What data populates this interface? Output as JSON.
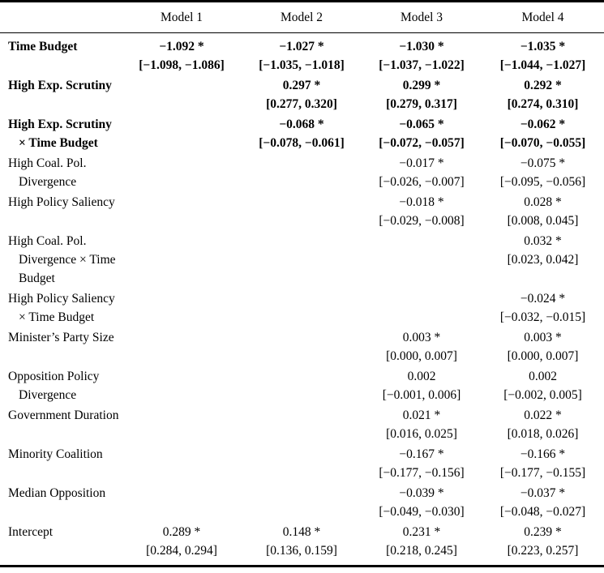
{
  "page": {
    "background": "#ffffff",
    "text_color": "#000000",
    "rule_color": "#000000"
  },
  "table": {
    "header": {
      "row_label_column": "",
      "columns": [
        "Model 1",
        "Model 2",
        "Model 3",
        "Model 4"
      ]
    },
    "groups": [
      {
        "bold": true,
        "lines": [
          {
            "label": "Time Budget",
            "indent": false,
            "cells": [
              "−1.092 *",
              "−1.027 *",
              "−1.030 *",
              "−1.035 *"
            ]
          },
          {
            "label": "",
            "indent": false,
            "cells": [
              "[−1.098, −1.086]",
              "[−1.035, −1.018]",
              "[−1.037, −1.022]",
              "[−1.044, −1.027]"
            ]
          }
        ]
      },
      {
        "bold": true,
        "lines": [
          {
            "label": "High Exp. Scrutiny",
            "indent": false,
            "cells": [
              "",
              "0.297 *",
              "0.299 *",
              "0.292 *"
            ]
          },
          {
            "label": "",
            "indent": false,
            "cells": [
              "",
              "[0.277, 0.320]",
              "[0.279, 0.317]",
              "[0.274, 0.310]"
            ]
          }
        ]
      },
      {
        "bold": true,
        "lines": [
          {
            "label": "High Exp. Scrutiny",
            "indent": false,
            "cells": [
              "",
              "−0.068 *",
              "−0.065 *",
              "−0.062 *"
            ]
          },
          {
            "label": "× Time Budget",
            "indent": true,
            "cells": [
              "",
              "[−0.078, −0.061]",
              "[−0.072, −0.057]",
              "[−0.070, −0.055]"
            ]
          }
        ]
      },
      {
        "bold": false,
        "lines": [
          {
            "label": "High Coal. Pol.",
            "indent": false,
            "cells": [
              "",
              "",
              "−0.017 *",
              "−0.075 *"
            ]
          },
          {
            "label": "Divergence",
            "indent": true,
            "cells": [
              "",
              "",
              "[−0.026, −0.007]",
              "[−0.095, −0.056]"
            ]
          }
        ]
      },
      {
        "bold": false,
        "lines": [
          {
            "label": "High Policy Saliency",
            "indent": false,
            "cells": [
              "",
              "",
              "−0.018 *",
              "0.028 *"
            ]
          },
          {
            "label": "",
            "indent": false,
            "cells": [
              "",
              "",
              "[−0.029, −0.008]",
              "[0.008, 0.045]"
            ]
          }
        ]
      },
      {
        "bold": false,
        "lines": [
          {
            "label": "High Coal. Pol.",
            "indent": false,
            "cells": [
              "",
              "",
              "",
              "0.032 *"
            ]
          },
          {
            "label": "Divergence × Time",
            "indent": true,
            "cells": [
              "",
              "",
              "",
              "[0.023, 0.042]"
            ]
          },
          {
            "label": "Budget",
            "indent": true,
            "cells": [
              "",
              "",
              "",
              ""
            ]
          }
        ]
      },
      {
        "bold": false,
        "lines": [
          {
            "label": "High Policy Saliency",
            "indent": false,
            "cells": [
              "",
              "",
              "",
              "−0.024 *"
            ]
          },
          {
            "label": "× Time Budget",
            "indent": true,
            "cells": [
              "",
              "",
              "",
              "[−0.032, −0.015]"
            ]
          }
        ]
      },
      {
        "bold": false,
        "lines": [
          {
            "label": "Minister’s Party Size",
            "indent": false,
            "cells": [
              "",
              "",
              "0.003 *",
              "0.003 *"
            ]
          },
          {
            "label": "",
            "indent": false,
            "cells": [
              "",
              "",
              "[0.000, 0.007]",
              "[0.000, 0.007]"
            ]
          }
        ]
      },
      {
        "bold": false,
        "lines": [
          {
            "label": "Opposition Policy",
            "indent": false,
            "cells": [
              "",
              "",
              "0.002",
              "0.002"
            ]
          },
          {
            "label": "Divergence",
            "indent": true,
            "cells": [
              "",
              "",
              "[−0.001, 0.006]",
              "[−0.002, 0.005]"
            ]
          }
        ]
      },
      {
        "bold": false,
        "lines": [
          {
            "label": "Government Duration",
            "indent": false,
            "cells": [
              "",
              "",
              "0.021 *",
              "0.022 *"
            ]
          },
          {
            "label": "",
            "indent": false,
            "cells": [
              "",
              "",
              "[0.016, 0.025]",
              "[0.018, 0.026]"
            ]
          }
        ]
      },
      {
        "bold": false,
        "lines": [
          {
            "label": "Minority Coalition",
            "indent": false,
            "cells": [
              "",
              "",
              "−0.167 *",
              "−0.166 *"
            ]
          },
          {
            "label": "",
            "indent": false,
            "cells": [
              "",
              "",
              "[−0.177, −0.156]",
              "[−0.177, −0.155]"
            ]
          }
        ]
      },
      {
        "bold": false,
        "lines": [
          {
            "label": "Median Opposition",
            "indent": false,
            "cells": [
              "",
              "",
              "−0.039 *",
              "−0.037 *"
            ]
          },
          {
            "label": "",
            "indent": false,
            "cells": [
              "",
              "",
              "[−0.049, −0.030]",
              "[−0.048, −0.027]"
            ]
          }
        ]
      },
      {
        "bold": false,
        "lines": [
          {
            "label": "Intercept",
            "indent": false,
            "cells": [
              "0.289 *",
              "0.148 *",
              "0.231 *",
              "0.239 *"
            ]
          },
          {
            "label": "",
            "indent": false,
            "cells": [
              "[0.284, 0.294]",
              "[0.136, 0.159]",
              "[0.218, 0.245]",
              "[0.223, 0.257]"
            ]
          }
        ]
      }
    ]
  }
}
